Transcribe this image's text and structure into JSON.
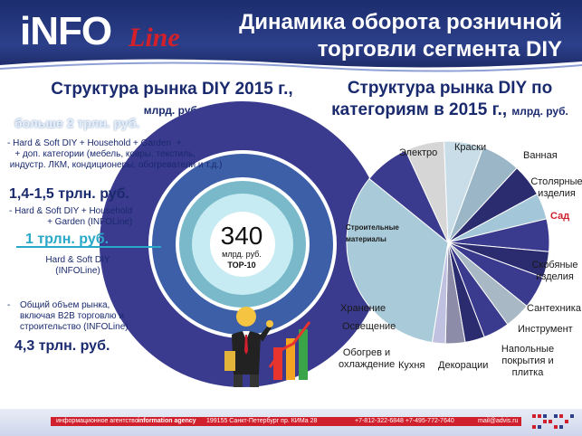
{
  "header": {
    "logo_main": "iNFO",
    "logo_line": "Line",
    "title": "Динамика оборота розничной торговли сегмента DIY"
  },
  "left_chart": {
    "title": "Структура рынка DIY 2015 г.,",
    "unit": "млрд. руб.",
    "center_value": "340",
    "center_unit": "млрд. руб.",
    "center_sub": "ТОР-10",
    "levels": [
      {
        "value": "больше 2 трлн. руб.",
        "desc": "- Hard & Soft DIY + Household + Garden  +\n   + доп. категории (мебель, ковры, текстиль,\n индустр. ЛКМ, кондиционеры, обогреватели и т.д.)"
      },
      {
        "value": "1,4-1,5 трлн. руб.",
        "desc": "- Hard & Soft DIY + Household\n+ Garden (INFOLine)"
      },
      {
        "value": "1 трлн. руб.",
        "desc": "Hard & Soft DIY\n(INFOLine)"
      },
      {
        "value": "4,3 трлн. руб.",
        "desc": "Общий объем рынка,\nвключая B2B торговлю и\nстроительство (INFOLine)"
      }
    ],
    "colors": {
      "outer_ring": "#3a3a8e",
      "ring2": "#3d5fa8",
      "ring3": "#79b9c9",
      "inner": "#c6ebf2",
      "center": "#ffffff"
    }
  },
  "chart_data": {
    "type": "pie",
    "title": "Структура рынка DIY по категориям в 2015 г.,",
    "unit": "млрд. руб.",
    "categories": [
      "Строительные материалы",
      "Электро",
      "Краски",
      "Ванная",
      "Столярные изделия",
      "Сад",
      "Скобяные изделия",
      "Сантехника",
      "Инструмент",
      "Напольные покрытия и плитка",
      "Декорации",
      "Кухня",
      "Обогрев и охлаждение",
      "Освещение",
      "Хранение"
    ],
    "values": [
      32,
      7,
      6,
      6,
      6,
      5,
      4,
      5,
      4,
      5,
      4,
      4,
      3,
      3,
      2
    ],
    "colors": [
      "#a9cad9",
      "#3a3a8e",
      "#d6d6d6",
      "#c8dde7",
      "#9bb6c6",
      "#2b2b70",
      "#a3c6d8",
      "#3a3a8e",
      "#2b2b70",
      "#3a3a8e",
      "#a8b8c4",
      "#3a3a8e",
      "#2b2b70",
      "#8c8ca8",
      "#c0c0e0"
    ],
    "label_highlight": "#d1202d"
  },
  "footer": {
    "agency": "информационное агентство",
    "agency_en": "information agency",
    "address": "199155 Санкт-Петербург пр. КИМа 28",
    "phones": "+7-812-322-6848  +7-495-772-7640",
    "email": "mail@advis.ru"
  }
}
